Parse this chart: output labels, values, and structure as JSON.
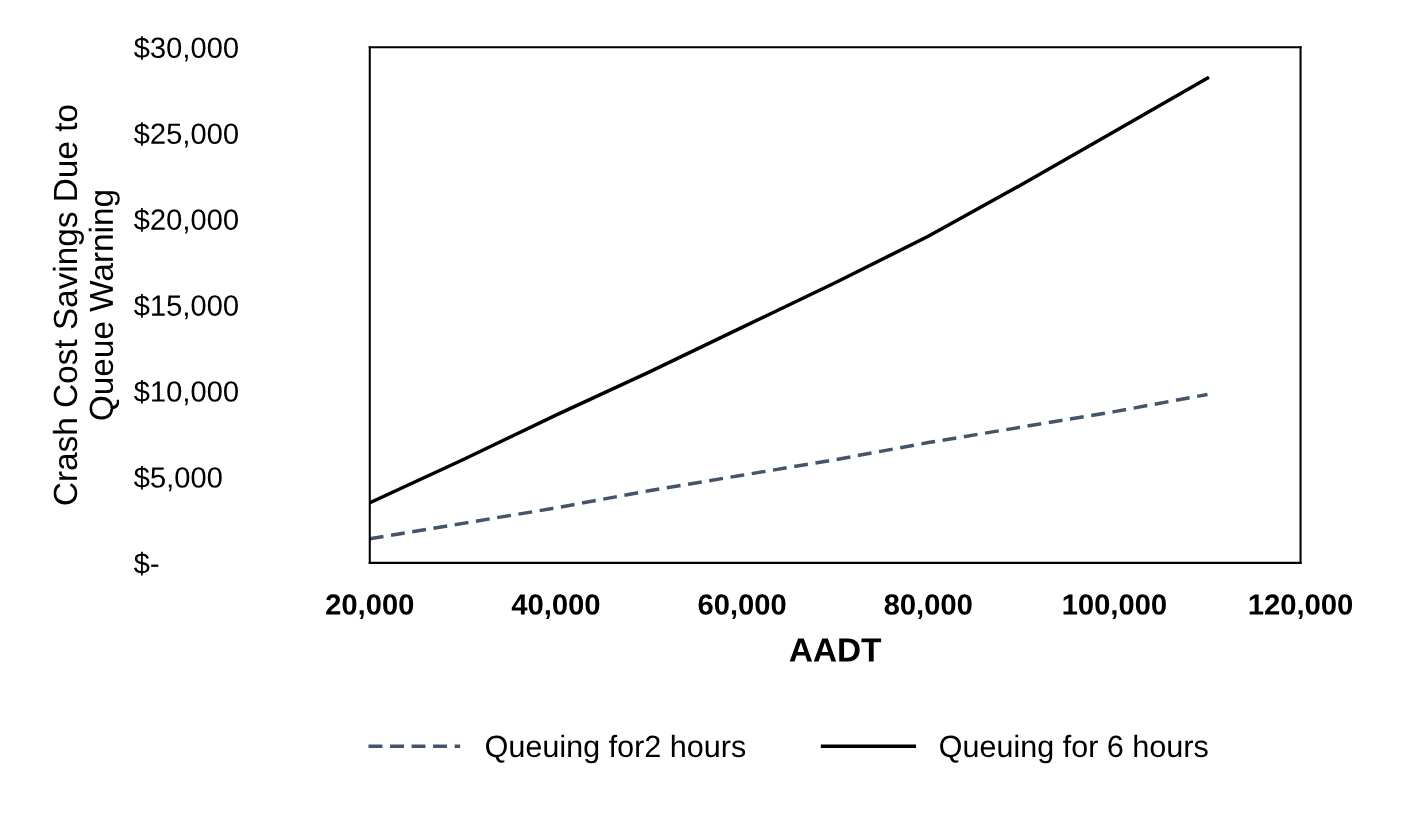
{
  "chart_data": {
    "type": "line",
    "xlabel": "AADT",
    "ylabel": "Crash Cost Savings Due to\nQueue Warning",
    "x": [
      20000,
      30000,
      40000,
      50000,
      60000,
      70000,
      80000,
      90000,
      100000,
      110000
    ],
    "series": [
      {
        "name": "Queuing for2 hours",
        "color": "#44546a",
        "line_style": "dashed",
        "values": [
          1400,
          2300,
          3200,
          4200,
          5100,
          6000,
          7000,
          7900,
          8800,
          9800
        ]
      },
      {
        "name": "Queuing for 6 hours",
        "color": "#000000",
        "line_style": "solid",
        "values": [
          3500,
          6000,
          8600,
          11100,
          13700,
          16300,
          19000,
          22000,
          25100,
          28200
        ]
      }
    ],
    "xlim": [
      20000,
      120000
    ],
    "xticks": [
      {
        "value": 20000,
        "label": "20,000"
      },
      {
        "value": 40000,
        "label": "40,000"
      },
      {
        "value": 60000,
        "label": "60,000"
      },
      {
        "value": 80000,
        "label": "80,000"
      },
      {
        "value": 100000,
        "label": "100,000"
      },
      {
        "value": 120000,
        "label": "120,000"
      }
    ],
    "ylim": [
      0,
      30000
    ],
    "yticks": [
      {
        "value": 0,
        "label": "$-"
      },
      {
        "value": 5000,
        "label": "$5,000"
      },
      {
        "value": 10000,
        "label": "$10,000"
      },
      {
        "value": 15000,
        "label": "$15,000"
      },
      {
        "value": 20000,
        "label": "$20,000"
      },
      {
        "value": 25000,
        "label": "$25,000"
      },
      {
        "value": 30000,
        "label": "$30,000"
      }
    ],
    "grid": false,
    "legend": "bottom",
    "marker": "none"
  }
}
